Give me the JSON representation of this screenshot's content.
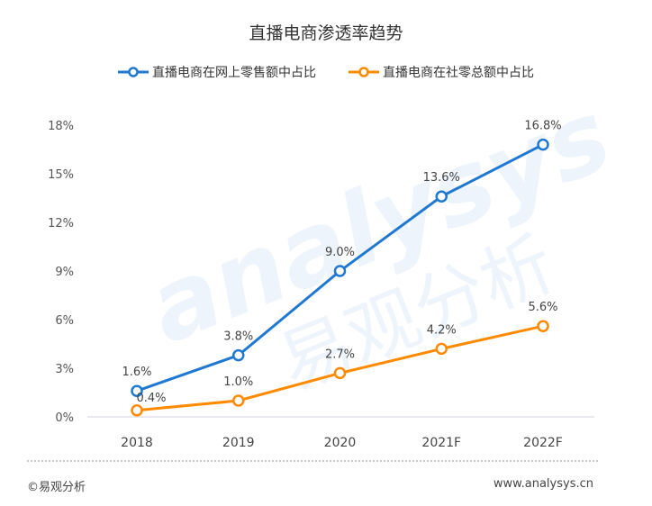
{
  "chart_data": {
    "type": "line",
    "title": "直播电商渗透率趋势",
    "categories": [
      "2018",
      "2019",
      "2020",
      "2021F",
      "2022F"
    ],
    "yticks": [
      "0%",
      "3%",
      "6%",
      "9%",
      "12%",
      "15%",
      "18%"
    ],
    "ylim": [
      0,
      18
    ],
    "grid": false,
    "legend_position": "top",
    "series": [
      {
        "name": "直播电商在网上零售额中占比",
        "color": "#1f78d1",
        "values": [
          1.6,
          3.8,
          9.0,
          13.6,
          16.8
        ],
        "labels": [
          "1.6%",
          "3.8%",
          "9.0%",
          "13.6%",
          "16.8%"
        ]
      },
      {
        "name": "直播电商在社零总额中占比",
        "color": "#ff8a00",
        "values": [
          0.4,
          1.0,
          2.7,
          4.2,
          5.6
        ],
        "labels": [
          "0.4%",
          "1.0%",
          "2.7%",
          "4.2%",
          "5.6%"
        ]
      }
    ]
  },
  "watermark": {
    "text_en": "analysys",
    "text_cn": "易观分析"
  },
  "footer": {
    "copyright": "©易观分析",
    "site": "www.analysys.cn"
  }
}
